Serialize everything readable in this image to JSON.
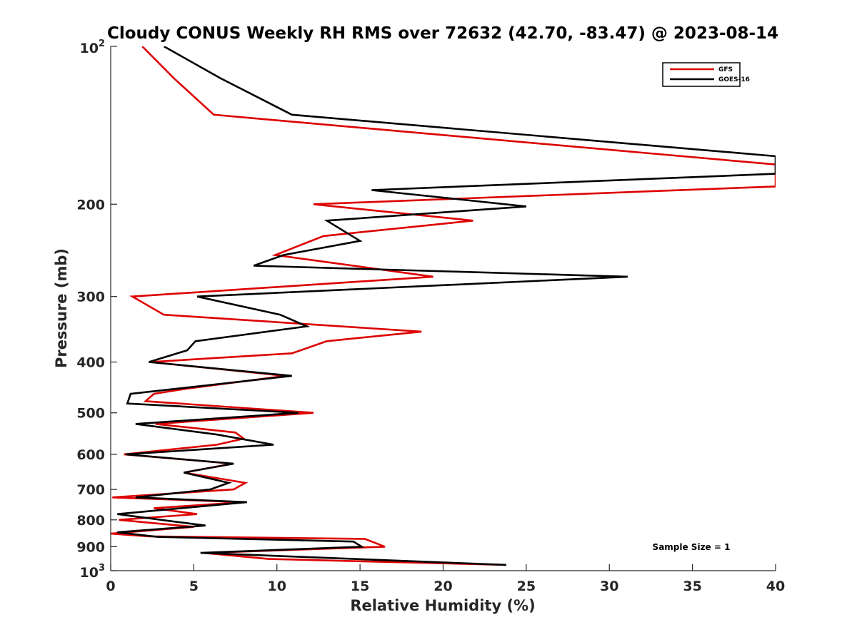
{
  "chart_data": {
    "type": "line",
    "title": "Cloudy CONUS Weekly RH RMS over 72632 (42.70, -83.47) @ 2023-08-14",
    "xlabel": "Relative Humidity (%)",
    "ylabel": "Pressure (mb)",
    "xlim": [
      0,
      40
    ],
    "ylim": [
      100,
      1000
    ],
    "yscale": "log",
    "y_reversed": true,
    "x_ticks": [
      0,
      5,
      10,
      15,
      20,
      25,
      30,
      35,
      40
    ],
    "x_tick_labels": [
      "0",
      "5",
      "10",
      "15",
      "20",
      "25",
      "30",
      "35",
      "40"
    ],
    "y_ticks": [
      100,
      200,
      300,
      400,
      500,
      600,
      700,
      800,
      900,
      1000
    ],
    "y_tick_labels": [
      {
        "base": "10",
        "exp": "2"
      },
      {
        "base": "200",
        "exp": ""
      },
      {
        "base": "300",
        "exp": ""
      },
      {
        "base": "400",
        "exp": ""
      },
      {
        "base": "500",
        "exp": ""
      },
      {
        "base": "600",
        "exp": ""
      },
      {
        "base": "700",
        "exp": ""
      },
      {
        "base": "800",
        "exp": ""
      },
      {
        "base": "900",
        "exp": ""
      },
      {
        "base": "10",
        "exp": "3"
      }
    ],
    "legend_position": "top-right",
    "annotation": "Sample Size = 1",
    "series": [
      {
        "name": "GFS",
        "color": "#dd0000",
        "points": [
          [
            1.9,
            100
          ],
          [
            3.8,
            115
          ],
          [
            6.2,
            135
          ],
          [
            40,
            168
          ],
          [
            40,
            185
          ],
          [
            12.2,
            200
          ],
          [
            21.8,
            215
          ],
          [
            12.8,
            230
          ],
          [
            9.9,
            250
          ],
          [
            19.4,
            275
          ],
          [
            1.3,
            300
          ],
          [
            3.2,
            325
          ],
          [
            18.7,
            350
          ],
          [
            13,
            365
          ],
          [
            10.9,
            385
          ],
          [
            2.4,
            400
          ],
          [
            10.5,
            425
          ],
          [
            4.5,
            450
          ],
          [
            2.6,
            460
          ],
          [
            2.1,
            475
          ],
          [
            12.2,
            500
          ],
          [
            2.7,
            525
          ],
          [
            7.5,
            545
          ],
          [
            8,
            560
          ],
          [
            6.4,
            575
          ],
          [
            0.8,
            600
          ],
          [
            7.3,
            625
          ],
          [
            4.4,
            650
          ],
          [
            8.1,
            680
          ],
          [
            7.4,
            700
          ],
          [
            0.1,
            725
          ],
          [
            8,
            740
          ],
          [
            2.6,
            760
          ],
          [
            5.2,
            780
          ],
          [
            0.5,
            800
          ],
          [
            5,
            825
          ],
          [
            0,
            850
          ],
          [
            2.3,
            860
          ],
          [
            15.3,
            870
          ],
          [
            16.5,
            900
          ],
          [
            5.6,
            925
          ],
          [
            9.5,
            950
          ],
          [
            23.8,
            975
          ]
        ]
      },
      {
        "name": "GOES-16",
        "color": "#000000",
        "points": [
          [
            3.2,
            100
          ],
          [
            6.6,
            115
          ],
          [
            10.9,
            135
          ],
          [
            40,
            162
          ],
          [
            40,
            175
          ],
          [
            15.7,
            188
          ],
          [
            25,
            202
          ],
          [
            13,
            215
          ],
          [
            15,
            235
          ],
          [
            10.4,
            250
          ],
          [
            8.6,
            262
          ],
          [
            31.1,
            275
          ],
          [
            5.2,
            300
          ],
          [
            10.2,
            325
          ],
          [
            11.8,
            342
          ],
          [
            5.1,
            365
          ],
          [
            4.6,
            380
          ],
          [
            2.3,
            400
          ],
          [
            10.9,
            425
          ],
          [
            1.2,
            460
          ],
          [
            1,
            480
          ],
          [
            11.3,
            500
          ],
          [
            1.5,
            525
          ],
          [
            6.4,
            550
          ],
          [
            9.8,
            575
          ],
          [
            0.9,
            600
          ],
          [
            7.4,
            625
          ],
          [
            4.4,
            650
          ],
          [
            7.1,
            680
          ],
          [
            6,
            700
          ],
          [
            1.5,
            725
          ],
          [
            8.2,
            740
          ],
          [
            0.4,
            780
          ],
          [
            3.7,
            805
          ],
          [
            5.7,
            820
          ],
          [
            0.4,
            845
          ],
          [
            2.8,
            862
          ],
          [
            14.6,
            880
          ],
          [
            15.1,
            900
          ],
          [
            5.4,
            925
          ],
          [
            23.8,
            975
          ]
        ]
      }
    ]
  }
}
